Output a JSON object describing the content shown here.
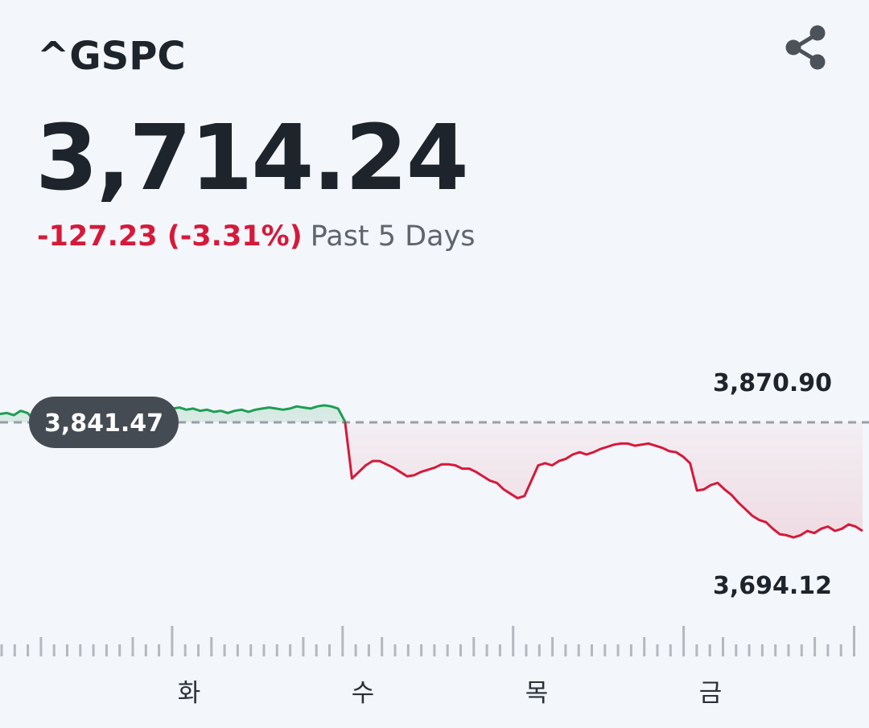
{
  "header": {
    "ticker": "^GSPC",
    "price": "3,714.24",
    "change": "-127.23 (-3.31%)",
    "period": "Past 5 Days",
    "share_icon": "share-icon"
  },
  "colors": {
    "positive": "#1e9e54",
    "negative": "#d6193a",
    "text": "#1e242c",
    "muted": "#5f656d",
    "baseline": "#9a9ea6",
    "pill": "#454b53"
  },
  "chart_data": {
    "type": "line",
    "baseline": {
      "value": 3841.47,
      "label": "3,841.47",
      "style": "dashed"
    },
    "high_label": "3,870.90",
    "low_label": "3,694.12",
    "ylim": [
      3694.12,
      3870.9
    ],
    "x_tick_labels": [
      "화",
      "수",
      "목",
      "금"
    ],
    "series": [
      {
        "values": [
          3849,
          3850,
          3848,
          3852,
          3850,
          3843,
          3832,
          3829,
          3831,
          3834,
          3836,
          3834,
          3837,
          3839,
          3840,
          3843,
          3845,
          3848,
          3852,
          3854,
          3853,
          3855,
          3853,
          3855,
          3856,
          3854,
          3855,
          3853,
          3854,
          3852,
          3853,
          3851,
          3852,
          3850,
          3852,
          3853,
          3851,
          3853,
          3854,
          3855,
          3854,
          3853,
          3854,
          3856,
          3855,
          3854,
          3856,
          3857,
          3856,
          3854,
          3842,
          3790,
          3796,
          3802,
          3806,
          3806,
          3803,
          3800,
          3796,
          3792,
          3793,
          3796,
          3798,
          3800,
          3803,
          3803,
          3802,
          3799,
          3799,
          3796,
          3792,
          3788,
          3786,
          3780,
          3776,
          3772,
          3774,
          3788,
          3802,
          3804,
          3802,
          3806,
          3808,
          3812,
          3814,
          3812,
          3814,
          3817,
          3819,
          3821,
          3822,
          3822,
          3820,
          3821,
          3822,
          3820,
          3818,
          3815,
          3814,
          3810,
          3804,
          3779,
          3780,
          3784,
          3786,
          3780,
          3775,
          3768,
          3762,
          3756,
          3752,
          3750,
          3744,
          3739,
          3738,
          3736,
          3738,
          3742,
          3740,
          3744,
          3746,
          3742,
          3744,
          3748,
          3746,
          3742
        ]
      }
    ]
  }
}
